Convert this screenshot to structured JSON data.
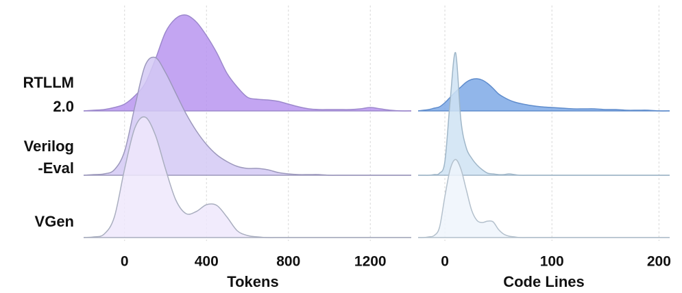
{
  "rows": [
    "RTLLM\n2.0",
    "Verilog\n-Eval",
    "VGen"
  ],
  "chart_data": [
    {
      "type": "ridgeline",
      "x_label": "Tokens",
      "xlim": [
        -200,
        1400
      ],
      "xticks": [
        0,
        400,
        800,
        1200
      ],
      "grid": true,
      "x": [
        -200,
        -150,
        -100,
        -50,
        0,
        50,
        100,
        150,
        200,
        250,
        300,
        350,
        400,
        450,
        500,
        550,
        600,
        650,
        700,
        750,
        800,
        850,
        900,
        950,
        1000,
        1050,
        1100,
        1150,
        1200,
        1250,
        1300,
        1350,
        1400
      ],
      "series": [
        {
          "name": "RTLLM 2.0",
          "color": "#b995f0",
          "stroke": "#9c88cc",
          "values": [
            0,
            1,
            2,
            5,
            10,
            22,
            40,
            75,
            115,
            135,
            140,
            130,
            110,
            85,
            55,
            35,
            20,
            17,
            16,
            14,
            10,
            6,
            3,
            2,
            2,
            2,
            2,
            3,
            5,
            3,
            1,
            0,
            0
          ]
        },
        {
          "name": "Verilog-Eval",
          "color": "#d4c9f4",
          "stroke": "#9c98bc",
          "values": [
            0,
            1,
            2,
            8,
            35,
            100,
            160,
            172,
            150,
            120,
            90,
            65,
            45,
            30,
            20,
            13,
            10,
            10,
            8,
            4,
            2,
            1,
            1,
            1,
            0,
            0,
            0,
            0,
            0,
            0,
            0,
            0,
            0
          ]
        },
        {
          "name": "VGen",
          "color": "#efe8fb",
          "stroke": "#a9aebf",
          "values": [
            0,
            1,
            5,
            30,
            100,
            160,
            176,
            150,
            100,
            55,
            35,
            38,
            48,
            47,
            30,
            10,
            3,
            1,
            0,
            0,
            0,
            0,
            0,
            0,
            0,
            0,
            0,
            0,
            0,
            0,
            0,
            0,
            0
          ]
        }
      ]
    },
    {
      "type": "ridgeline",
      "x_label": "Code Lines",
      "xlim": [
        -25,
        210
      ],
      "xticks": [
        0,
        100,
        200
      ],
      "grid": true,
      "x": [
        -25,
        -20,
        -15,
        -10,
        -5,
        0,
        5,
        10,
        15,
        20,
        25,
        30,
        35,
        40,
        45,
        50,
        55,
        60,
        65,
        70,
        80,
        90,
        100,
        110,
        120,
        130,
        140,
        150,
        160,
        170,
        180,
        190,
        200,
        210
      ],
      "series": [
        {
          "color": "#7ea9e6",
          "stroke": "#5f8ccc",
          "values": [
            0,
            1,
            2,
            4,
            6,
            12,
            20,
            28,
            35,
            42,
            46,
            47,
            45,
            40,
            33,
            25,
            20,
            16,
            13,
            11,
            8,
            6,
            5,
            4,
            3,
            3,
            3,
            2,
            2,
            1,
            1,
            1,
            0,
            0
          ]
        },
        {
          "color": "#cfe3f3",
          "stroke": "#9fb6c8",
          "values": [
            0,
            0,
            0,
            1,
            3,
            20,
            110,
            179,
            80,
            40,
            25,
            15,
            8,
            3,
            2,
            1,
            1,
            2,
            1,
            0,
            0,
            0,
            0,
            0,
            0,
            0,
            0,
            0,
            0,
            0,
            0,
            0,
            0,
            0
          ]
        },
        {
          "color": "#eef5fb",
          "stroke": "#b3c0cc",
          "values": [
            0,
            0,
            1,
            3,
            15,
            60,
            100,
            114,
            100,
            70,
            40,
            25,
            22,
            24,
            23,
            12,
            5,
            2,
            1,
            0,
            0,
            0,
            0,
            0,
            0,
            0,
            0,
            0,
            0,
            0,
            0,
            0,
            0,
            0
          ]
        }
      ]
    }
  ]
}
